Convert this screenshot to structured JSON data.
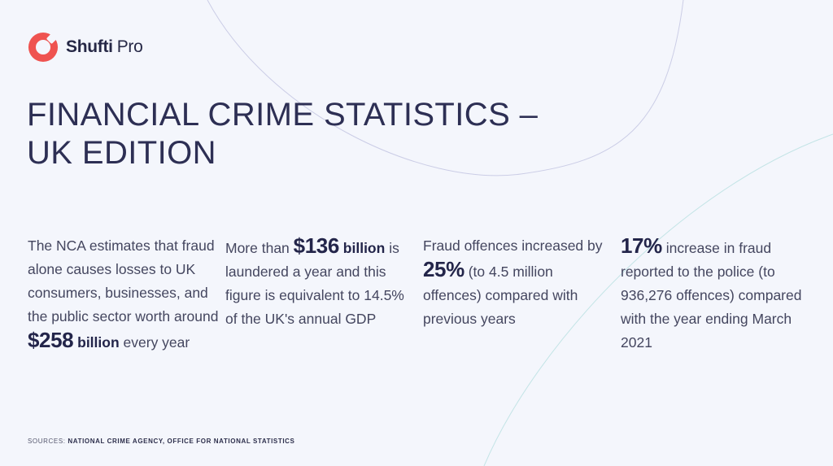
{
  "brand": {
    "name_part1": "Shufti",
    "name_part2": "Pro",
    "accent_color": "#ef5350"
  },
  "title": {
    "line1": "FINANCIAL CRIME STATISTICS –",
    "line2": "UK EDITION"
  },
  "stats": [
    {
      "before": "The NCA estimates that fraud alone causes losses to UK consumers, businesses, and the public sector worth around",
      "figure": "$258",
      "unit": "billion",
      "after": "every year"
    },
    {
      "before": "More than",
      "figure": "$136",
      "unit": "billion",
      "after": "is laundered a year and this figure is equivalent to 14.5% of the UK's annual GDP"
    },
    {
      "before": "Fraud offences increased by",
      "figure": "25%",
      "after": "(to 4.5 million offences) compared with previous years"
    },
    {
      "figure": "17%",
      "after": "increase in fraud reported to the police (to 936,276 offences) compared with the year ending March 2021"
    }
  ],
  "sources": {
    "label": "SOURCES:",
    "text": "NATIONAL CRIME AGENCY, OFFICE FOR NATIONAL STATISTICS"
  }
}
